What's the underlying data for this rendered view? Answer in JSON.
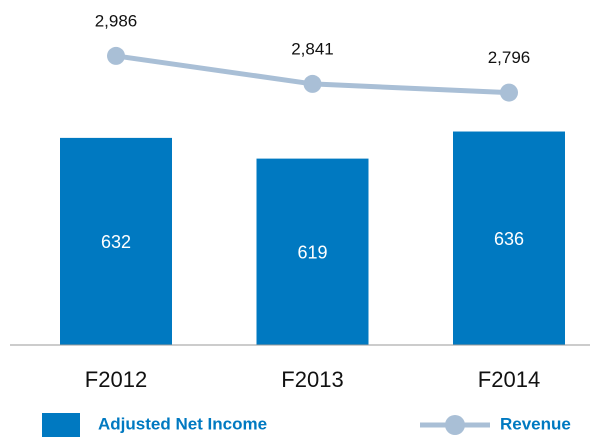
{
  "chart_data": {
    "type": "bar-line",
    "categories": [
      "F2012",
      "F2013",
      "F2014"
    ],
    "series": [
      {
        "name": "Adjusted Net Income",
        "type": "bar",
        "color": "#0079c1",
        "values": [
          632,
          619,
          636
        ]
      },
      {
        "name": "Revenue",
        "type": "line",
        "axis": "y2",
        "color": "#a9bfd6",
        "values": [
          2986,
          2841,
          2796
        ],
        "value_labels": [
          "2,986",
          "2,841",
          "2,796"
        ]
      }
    ],
    "ylim": [
      502,
      706
    ],
    "y2lim": [
      1489,
      3172
    ]
  }
}
